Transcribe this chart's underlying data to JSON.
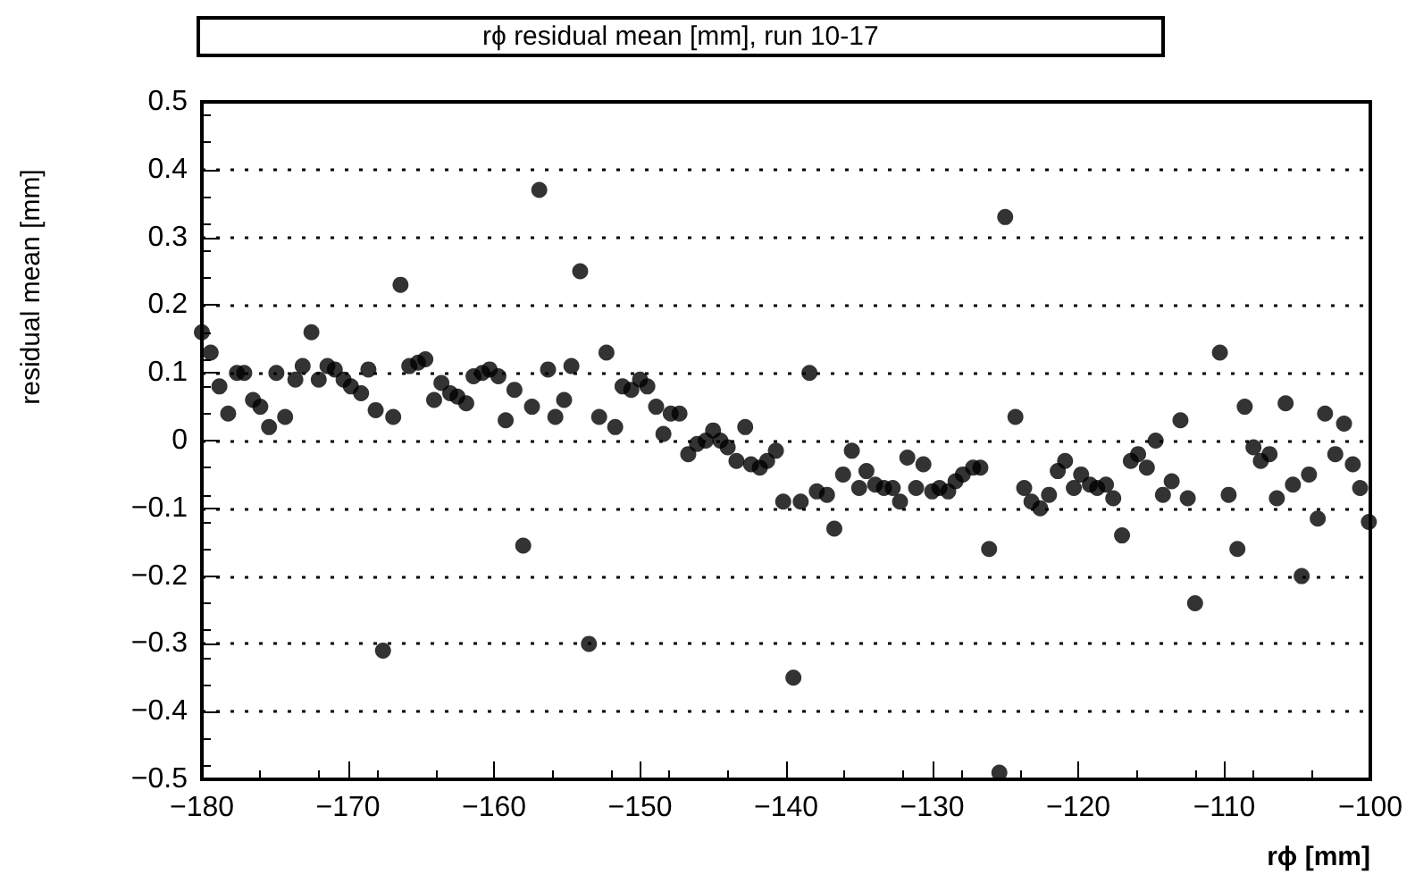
{
  "chart_data": {
    "type": "scatter",
    "title": "rϕ residual mean [mm], run 10-17",
    "xlabel": "rϕ [mm]",
    "ylabel": "residual mean [mm]",
    "x": [
      -180,
      -179.4,
      -178.8,
      -178.2,
      -177.6,
      -177.1,
      -176.5,
      -176.0,
      -175.4,
      -174.9,
      -174.3,
      -173.6,
      -173.1,
      -172.5,
      -172.0,
      -171.4,
      -170.9,
      -170.3,
      -169.8,
      -169.1,
      -168.6,
      -168.1,
      -167.6,
      -166.9,
      -166.4,
      -165.8,
      -165.2,
      -164.7,
      -164.1,
      -163.6,
      -163.0,
      -162.5,
      -161.9,
      -161.4,
      -160.8,
      -160.3,
      -159.7,
      -159.2,
      -158.6,
      -158.0,
      -157.4,
      -156.9,
      -156.3,
      -155.8,
      -155.2,
      -154.7,
      -154.1,
      -153.5,
      -152.8,
      -152.3,
      -151.7,
      -151.2,
      -150.6,
      -150.0,
      -149.5,
      -148.9,
      -148.4,
      -147.9,
      -147.3,
      -146.7,
      -146.1,
      -145.5,
      -145.0,
      -144.5,
      -144.0,
      -143.4,
      -142.8,
      -142.4,
      -141.8,
      -141.3,
      -140.7,
      -140.2,
      -139.5,
      -139.0,
      -138.4,
      -137.9,
      -137.2,
      -136.7,
      -136.1,
      -135.5,
      -135.0,
      -134.5,
      -133.9,
      -133.3,
      -132.7,
      -132.2,
      -131.7,
      -131.1,
      -130.6,
      -130.0,
      -129.5,
      -128.9,
      -128.4,
      -127.9,
      -127.2,
      -126.7,
      -126.1,
      -125.4,
      -125.0,
      -124.3,
      -123.7,
      -123.2,
      -122.6,
      -122.0,
      -121.4,
      -120.9,
      -120.3,
      -119.8,
      -119.2,
      -118.7,
      -118.1,
      -117.6,
      -117.0,
      -116.4,
      -115.9,
      -115.3,
      -114.7,
      -114.2,
      -113.6,
      -113.0,
      -112.5,
      -112.0,
      -110.3,
      -109.7,
      -109.1,
      -108.6,
      -108.0,
      -107.5,
      -106.9,
      -106.4,
      -105.8,
      -105.3,
      -104.7,
      -104.2,
      -103.6,
      -103.1,
      -102.4,
      -101.8,
      -101.2,
      -100.7,
      -100.1
    ],
    "values": [
      0.16,
      0.13,
      0.08,
      0.04,
      0.1,
      0.1,
      0.06,
      0.05,
      0.02,
      0.1,
      0.035,
      0.09,
      0.11,
      0.16,
      0.09,
      0.11,
      0.105,
      0.09,
      0.08,
      0.07,
      0.105,
      0.045,
      -0.31,
      0.035,
      0.23,
      0.11,
      0.115,
      0.12,
      0.06,
      0.085,
      0.07,
      0.065,
      0.055,
      0.095,
      0.1,
      0.105,
      0.095,
      0.03,
      0.075,
      -0.155,
      0.05,
      0.37,
      0.105,
      0.035,
      0.06,
      0.11,
      0.25,
      -0.3,
      0.035,
      0.13,
      0.02,
      0.08,
      0.075,
      0.09,
      0.08,
      0.05,
      0.01,
      0.04,
      0.04,
      -0.02,
      -0.005,
      0.0,
      0.015,
      0.0,
      -0.01,
      -0.03,
      0.02,
      -0.035,
      -0.04,
      -0.03,
      -0.015,
      -0.09,
      -0.35,
      -0.09,
      0.1,
      -0.075,
      -0.08,
      -0.13,
      -0.05,
      -0.015,
      -0.07,
      -0.045,
      -0.065,
      -0.07,
      -0.07,
      -0.09,
      -0.025,
      -0.07,
      -0.035,
      -0.075,
      -0.07,
      -0.075,
      -0.06,
      -0.05,
      -0.04,
      -0.04,
      -0.16,
      -0.49,
      0.33,
      0.035,
      -0.07,
      -0.09,
      -0.1,
      -0.08,
      -0.045,
      -0.03,
      -0.07,
      -0.05,
      -0.065,
      -0.07,
      -0.065,
      -0.085,
      -0.14,
      -0.03,
      -0.02,
      -0.04,
      0.0,
      -0.08,
      -0.06,
      0.03,
      -0.085,
      -0.24,
      0.13,
      -0.08,
      -0.16,
      0.05,
      -0.01,
      -0.03,
      -0.02,
      -0.085,
      0.055,
      -0.065,
      -0.2,
      -0.05,
      -0.115,
      0.04,
      -0.02,
      0.025,
      -0.035,
      -0.07,
      -0.12
    ],
    "color": "#000000",
    "marker": "circle",
    "grid": "y",
    "xlim": [
      -180,
      -100
    ],
    "ylim": [
      -0.5,
      0.5
    ],
    "xticks": [
      {
        "value": -180,
        "label": "−180"
      },
      {
        "value": -170,
        "label": "−170"
      },
      {
        "value": -160,
        "label": "−160"
      },
      {
        "value": -150,
        "label": "−150"
      },
      {
        "value": -140,
        "label": "−140"
      },
      {
        "value": -130,
        "label": "−130"
      },
      {
        "value": -120,
        "label": "−120"
      },
      {
        "value": -110,
        "label": "−110"
      },
      {
        "value": -100,
        "label": "−100"
      }
    ],
    "yticks": [
      {
        "value": -0.5,
        "label": "−0.5"
      },
      {
        "value": -0.4,
        "label": "−0.4"
      },
      {
        "value": -0.3,
        "label": "−0.3"
      },
      {
        "value": -0.2,
        "label": "−0.2"
      },
      {
        "value": -0.1,
        "label": "−0.1"
      },
      0,
      0.1,
      0.2,
      0.3,
      0.4,
      0.5
    ]
  }
}
